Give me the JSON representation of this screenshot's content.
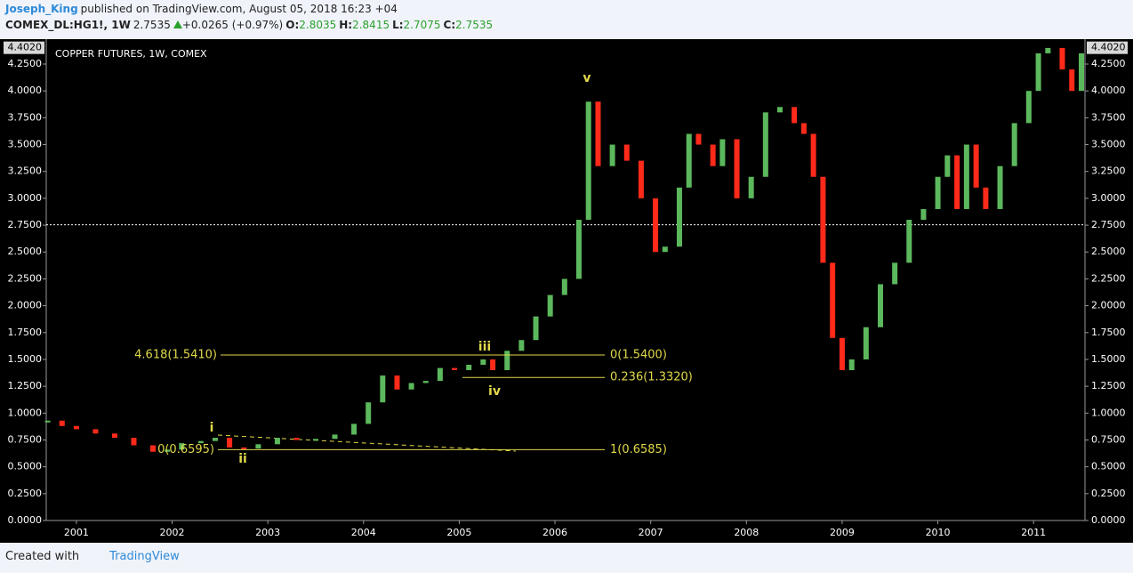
{
  "header": {
    "author": "Joseph_King",
    "published": "published on TradingView.com, August 05, 2018 16:23 +04",
    "symbol": "COMEX_DL:HG1!, 1W",
    "last": "2.7535",
    "change": "+0.0265 (+0.97%)",
    "ohlc": [
      {
        "label": "O:",
        "value": "2.8035"
      },
      {
        "label": "H:",
        "value": "2.8415"
      },
      {
        "label": "L:",
        "value": "2.7075"
      },
      {
        "label": "C:",
        "value": "2.7535"
      }
    ]
  },
  "footer": {
    "created": "Created with",
    "brand": "TradingView"
  },
  "chart_data": {
    "type": "candlestick",
    "title": "COPPER FUTURES, 1W, COMEX",
    "up_color": "#5cb85c",
    "down_color": "#ff2a1a",
    "x": [
      2000.7,
      2000.85,
      2001.0,
      2001.2,
      2001.4,
      2001.6,
      2001.8,
      2001.95,
      2002.1,
      2002.3,
      2002.45,
      2002.6,
      2002.75,
      2002.9,
      2003.1,
      2003.3,
      2003.5,
      2003.7,
      2003.9,
      2004.05,
      2004.2,
      2004.35,
      2004.5,
      2004.65,
      2004.8,
      2004.95,
      2005.1,
      2005.25,
      2005.35,
      2005.5,
      2005.65,
      2005.8,
      2005.95,
      2006.1,
      2006.25,
      2006.35,
      2006.45,
      2006.6,
      2006.75,
      2006.9,
      2007.05,
      2007.15,
      2007.3,
      2007.4,
      2007.5,
      2007.65,
      2007.75,
      2007.9,
      2008.05,
      2008.2,
      2008.35,
      2008.5,
      2008.6,
      2008.7,
      2008.8,
      2008.9,
      2009.0,
      2009.1,
      2009.25,
      2009.4,
      2009.55,
      2009.7,
      2009.85,
      2010.0,
      2010.1,
      2010.2,
      2010.3,
      2010.4,
      2010.5,
      2010.65,
      2010.8,
      2010.95,
      2011.05,
      2011.15,
      2011.3,
      2011.4,
      2011.5
    ],
    "values": [
      0.93,
      0.88,
      0.85,
      0.81,
      0.77,
      0.7,
      0.64,
      0.66,
      0.72,
      0.74,
      0.77,
      0.68,
      0.67,
      0.71,
      0.77,
      0.75,
      0.76,
      0.8,
      0.9,
      1.1,
      1.35,
      1.22,
      1.28,
      1.3,
      1.42,
      1.4,
      1.45,
      1.5,
      1.4,
      1.58,
      1.68,
      1.9,
      2.1,
      2.25,
      2.8,
      3.9,
      3.3,
      3.5,
      3.35,
      3.0,
      2.5,
      2.55,
      3.1,
      3.6,
      3.5,
      3.3,
      3.55,
      3.0,
      3.2,
      3.8,
      3.85,
      3.7,
      3.6,
      3.2,
      2.4,
      1.7,
      1.4,
      1.5,
      1.8,
      2.2,
      2.4,
      2.8,
      2.9,
      3.2,
      3.4,
      2.9,
      3.5,
      3.1,
      2.9,
      3.3,
      3.7,
      4.0,
      4.35,
      4.4,
      4.2,
      4.0,
      4.35
    ],
    "xlim": [
      2000.685,
      2011.537
    ],
    "ylim": [
      0,
      4.482
    ],
    "xticks": [
      2001,
      2002,
      2003,
      2004,
      2005,
      2006,
      2007,
      2008,
      2009,
      2010,
      2011
    ],
    "yticks": [
      {
        "value": 0,
        "label": "0.0000"
      },
      {
        "value": 0.25,
        "label": "0.2500"
      },
      {
        "value": 0.5,
        "label": "0.5000"
      },
      {
        "value": 0.75,
        "label": "0.7500"
      },
      {
        "value": 1,
        "label": "1.0000"
      },
      {
        "value": 1.25,
        "label": "1.2500"
      },
      {
        "value": 1.5,
        "label": "1.5000"
      },
      {
        "value": 1.75,
        "label": "1.7500"
      },
      {
        "value": 2,
        "label": "2.0000"
      },
      {
        "value": 2.25,
        "label": "2.2500"
      },
      {
        "value": 2.5,
        "label": "2.5000"
      },
      {
        "value": 2.75,
        "label": "2.7500"
      },
      {
        "value": 3,
        "label": "3.0000"
      },
      {
        "value": 3.25,
        "label": "3.2500"
      },
      {
        "value": 3.5,
        "label": "3.5000"
      },
      {
        "value": 3.75,
        "label": "3.7500"
      },
      {
        "value": 4,
        "label": "4.0000"
      },
      {
        "value": 4.25,
        "label": "4.2500"
      }
    ],
    "high_label": {
      "value": 4.402,
      "label": "4.4020"
    },
    "price_line": 2.7535,
    "fib_levels": [
      {
        "value": 1.541,
        "left": "4.618(1.5410)",
        "right": "0(1.5400)"
      },
      {
        "value": 1.332,
        "right": "0.236(1.3320)"
      },
      {
        "value": 0.6595,
        "left": "0(0.6595)",
        "right": "1(0.6585)"
      }
    ],
    "wave_labels": [
      "i",
      "ii",
      "iii",
      "iv",
      "v"
    ]
  }
}
